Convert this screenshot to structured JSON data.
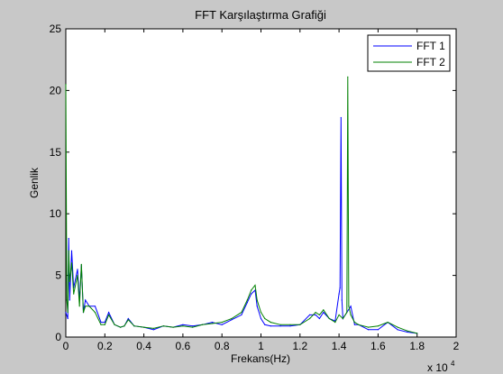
{
  "chart_data": {
    "type": "line",
    "title": "FFT Karşılaştırma Grafiği",
    "xlabel": "Frekans(Hz)",
    "ylabel": "Genlik",
    "x_multiplier_label": "x 10",
    "x_multiplier_exponent": "4",
    "xlim": [
      0,
      20000
    ],
    "ylim": [
      0,
      25
    ],
    "x_ticks": [
      0,
      2000,
      4000,
      6000,
      8000,
      10000,
      12000,
      14000,
      16000,
      18000,
      20000
    ],
    "x_tick_labels": [
      "0",
      "0.2",
      "0.4",
      "0.6",
      "0.8",
      "1",
      "1.2",
      "1.4",
      "1.6",
      "1.8",
      "2"
    ],
    "y_ticks": [
      0,
      5,
      10,
      15,
      20,
      25
    ],
    "y_tick_labels": [
      "0",
      "5",
      "10",
      "15",
      "20",
      "25"
    ],
    "grid": false,
    "legend_position": "top-right",
    "series": [
      {
        "name": "FFT 1",
        "color": "#0000ff",
        "x": [
          0,
          100,
          150,
          200,
          300,
          400,
          600,
          700,
          800,
          900,
          1000,
          1200,
          1500,
          1800,
          2000,
          2200,
          2500,
          2800,
          3000,
          3200,
          3500,
          4000,
          4500,
          5000,
          5500,
          6000,
          6500,
          7000,
          7500,
          8000,
          8500,
          9000,
          9300,
          9500,
          9700,
          9800,
          10000,
          10200,
          10500,
          11000,
          11500,
          12000,
          12500,
          12800,
          13000,
          13200,
          13500,
          13800,
          14000,
          14050,
          14100,
          14150,
          14200,
          14400,
          14600,
          14800,
          15000,
          15500,
          16000,
          16500,
          17000,
          17500,
          18000
        ],
        "y": [
          2.0,
          1.5,
          8.0,
          3.0,
          7.0,
          4.0,
          5.5,
          3.0,
          5.8,
          2.0,
          3.0,
          2.5,
          2.5,
          1.2,
          1.2,
          2.0,
          1.0,
          0.8,
          0.9,
          1.5,
          0.9,
          0.8,
          0.6,
          0.9,
          0.8,
          1.0,
          0.9,
          1.0,
          1.2,
          1.0,
          1.4,
          1.8,
          2.8,
          3.5,
          3.8,
          2.5,
          1.5,
          1.0,
          0.9,
          0.9,
          0.9,
          1.0,
          1.8,
          1.8,
          1.5,
          2.0,
          1.5,
          1.3,
          3.5,
          4.0,
          17.8,
          3.0,
          1.5,
          2.0,
          2.5,
          1.0,
          1.0,
          0.6,
          0.6,
          1.2,
          0.6,
          0.4,
          0.3
        ]
      },
      {
        "name": "FFT 2",
        "color": "#008000",
        "x": [
          0,
          50,
          100,
          150,
          200,
          300,
          400,
          600,
          700,
          800,
          900,
          1000,
          1200,
          1500,
          1800,
          2000,
          2200,
          2500,
          2800,
          3000,
          3200,
          3500,
          4000,
          4500,
          5000,
          5500,
          6000,
          6500,
          7000,
          7500,
          8000,
          8500,
          9000,
          9300,
          9500,
          9700,
          9800,
          10000,
          10200,
          10500,
          11000,
          11500,
          12000,
          12500,
          12800,
          13000,
          13200,
          13500,
          13800,
          14000,
          14200,
          14400,
          14450,
          14500,
          14600,
          14800,
          15000,
          15500,
          16000,
          16500,
          17000,
          17500,
          18000
        ],
        "y": [
          20.5,
          3.0,
          2.0,
          7.0,
          4.5,
          6.0,
          3.5,
          5.0,
          2.5,
          5.9,
          2.0,
          2.5,
          2.5,
          2.0,
          1.0,
          1.0,
          1.8,
          1.0,
          0.8,
          0.9,
          1.4,
          0.9,
          0.8,
          0.7,
          0.9,
          0.8,
          0.9,
          0.8,
          1.0,
          1.1,
          1.2,
          1.5,
          2.0,
          3.0,
          3.8,
          4.2,
          3.0,
          2.0,
          1.5,
          1.2,
          1.0,
          1.0,
          1.0,
          1.5,
          2.0,
          1.8,
          2.2,
          1.5,
          1.2,
          1.8,
          1.5,
          2.0,
          21.1,
          2.5,
          1.8,
          1.2,
          1.0,
          0.8,
          0.9,
          1.2,
          0.8,
          0.5,
          0.3
        ]
      }
    ]
  }
}
